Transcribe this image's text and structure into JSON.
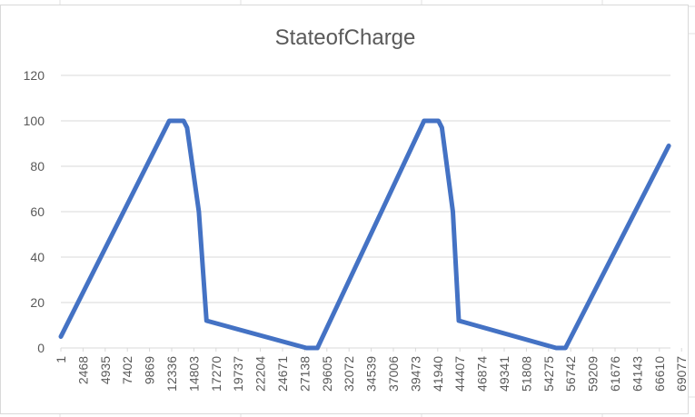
{
  "chart_data": {
    "type": "line",
    "title": "StateofCharge",
    "xlabel": "",
    "ylabel": "",
    "x_tick_labels": [
      "1",
      "2468",
      "4935",
      "7402",
      "9869",
      "12336",
      "14803",
      "17270",
      "19737",
      "22204",
      "24671",
      "27138",
      "29605",
      "32072",
      "34539",
      "37006",
      "39473",
      "41940",
      "44407",
      "46874",
      "49341",
      "51808",
      "54275",
      "56742",
      "59209",
      "61676",
      "64143",
      "66610",
      "69077"
    ],
    "y_tick_labels": [
      "0",
      "20",
      "40",
      "60",
      "80",
      "100",
      "120"
    ],
    "xlim": [
      1,
      72000
    ],
    "ylim": [
      0,
      120
    ],
    "grid": true,
    "legend": "none",
    "colors": {
      "line": "#4472C4",
      "grid": "#d9d9d9",
      "text": "#595959"
    },
    "series": [
      {
        "values": [
          [
            1,
            5
          ],
          [
            12800,
            100
          ],
          [
            14500,
            100
          ],
          [
            14900,
            97
          ],
          [
            16300,
            60
          ],
          [
            17200,
            12
          ],
          [
            29000,
            0
          ],
          [
            30300,
            0
          ],
          [
            42900,
            100
          ],
          [
            44600,
            100
          ],
          [
            45000,
            97
          ],
          [
            46300,
            60
          ],
          [
            47000,
            12
          ],
          [
            58500,
            0
          ],
          [
            59600,
            0
          ],
          [
            71800,
            89
          ]
        ]
      }
    ]
  }
}
